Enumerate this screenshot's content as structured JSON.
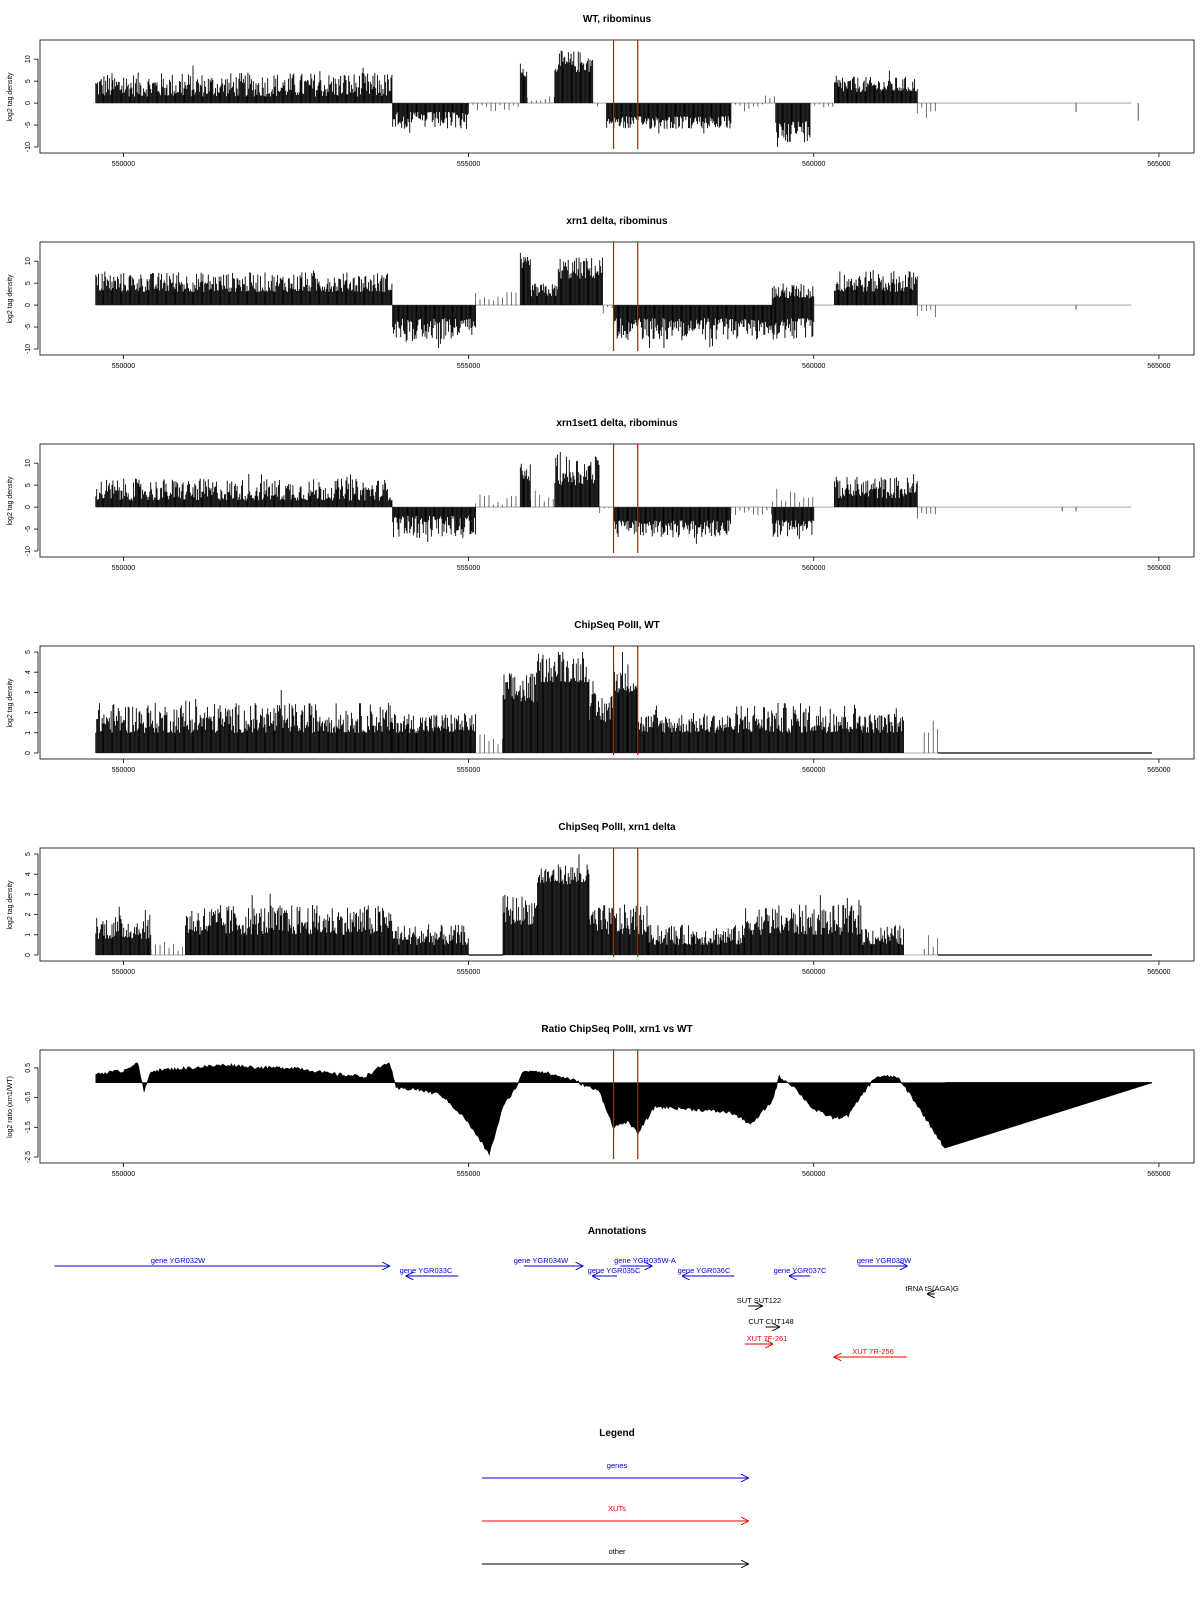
{
  "colors": {
    "gene": "#0000cc",
    "xut": "#ee0000",
    "other": "#000000",
    "marker": "#ee0000",
    "bar": "#000000",
    "baseline": "#999999"
  },
  "x_axis": {
    "min": 549400,
    "max": 564900,
    "ticks": [
      550000,
      555000,
      560000,
      565000
    ]
  },
  "markers": [
    557100,
    557450
  ],
  "chart_data": [
    {
      "type": "bar",
      "title": "WT, ribominus",
      "xlabel": "",
      "ylabel": "log2 tag density",
      "xlim": [
        549400,
        564900
      ],
      "ylim": [
        -10,
        13
      ],
      "yticks": [
        10,
        5,
        0,
        -5,
        -10
      ],
      "profile": [
        {
          "x": [
            549600,
            553900
          ],
          "y": [
            1.5,
            7
          ],
          "stroke": "dense"
        },
        {
          "x": [
            553900,
            555000
          ],
          "y": [
            -2,
            -6
          ],
          "stroke": "dense"
        },
        {
          "x": [
            555000,
            555750
          ],
          "y": [
            0.3,
            -2
          ],
          "stroke": "sparse"
        },
        {
          "x": [
            555750,
            555850
          ],
          "y": [
            6,
            8
          ],
          "stroke": "dense"
        },
        {
          "x": [
            555850,
            556250
          ],
          "y": [
            0.5,
            2
          ],
          "stroke": "sparse"
        },
        {
          "x": [
            556250,
            556800
          ],
          "y": [
            7,
            12
          ],
          "stroke": "dense"
        },
        {
          "x": [
            556800,
            557000
          ],
          "y": [
            0,
            -1
          ],
          "stroke": "sparse"
        },
        {
          "x": [
            557000,
            558800
          ],
          "y": [
            -3,
            -6
          ],
          "stroke": "dense"
        },
        {
          "x": [
            558800,
            559300
          ],
          "y": [
            0.3,
            -2
          ],
          "stroke": "sparse"
        },
        {
          "x": [
            559300,
            559450
          ],
          "y": [
            1,
            3
          ],
          "stroke": "sparse"
        },
        {
          "x": [
            559450,
            559950
          ],
          "y": [
            -4,
            -9
          ],
          "stroke": "dense"
        },
        {
          "x": [
            559950,
            560300
          ],
          "y": [
            0,
            -1
          ],
          "stroke": "sparse"
        },
        {
          "x": [
            560300,
            561500
          ],
          "y": [
            2.5,
            6
          ],
          "stroke": "dense"
        },
        {
          "x": [
            561500,
            561800
          ],
          "y": [
            -1,
            -3
          ],
          "stroke": "sparse"
        },
        {
          "x": [
            563800,
            563830
          ],
          "y": [
            -2,
            -2
          ],
          "stroke": "single"
        },
        {
          "x": [
            564700,
            564730
          ],
          "y": [
            -4,
            -4
          ],
          "stroke": "single"
        }
      ]
    },
    {
      "type": "bar",
      "title": "xrn1 delta, ribominus",
      "xlabel": "",
      "ylabel": "log2 tag density",
      "xlim": [
        549400,
        564900
      ],
      "ylim": [
        -10,
        13
      ],
      "yticks": [
        10,
        5,
        0,
        -5,
        -10
      ],
      "profile": [
        {
          "x": [
            549600,
            553900
          ],
          "y": [
            3,
            7.5
          ],
          "stroke": "dense"
        },
        {
          "x": [
            553900,
            555100
          ],
          "y": [
            -3,
            -8
          ],
          "stroke": "dense"
        },
        {
          "x": [
            555100,
            555750
          ],
          "y": [
            -1,
            3
          ],
          "stroke": "sparse"
        },
        {
          "x": [
            555750,
            555900
          ],
          "y": [
            8,
            11
          ],
          "stroke": "dense"
        },
        {
          "x": [
            555900,
            556300
          ],
          "y": [
            2,
            5
          ],
          "stroke": "dense"
        },
        {
          "x": [
            556300,
            556950
          ],
          "y": [
            6,
            11
          ],
          "stroke": "dense"
        },
        {
          "x": [
            556950,
            557100
          ],
          "y": [
            0,
            -2
          ],
          "stroke": "sparse"
        },
        {
          "x": [
            557100,
            559400
          ],
          "y": [
            -3,
            -8
          ],
          "stroke": "dense"
        },
        {
          "x": [
            559400,
            560000
          ],
          "y": [
            -3,
            -8
          ],
          "stroke": "dense"
        },
        {
          "x": [
            559400,
            560000
          ],
          "y": [
            1.5,
            5
          ],
          "stroke": "dense"
        },
        {
          "x": [
            560300,
            561500
          ],
          "y": [
            3,
            8
          ],
          "stroke": "dense"
        },
        {
          "x": [
            561500,
            561800
          ],
          "y": [
            -1,
            -3
          ],
          "stroke": "sparse"
        },
        {
          "x": [
            563800,
            563830
          ],
          "y": [
            -1,
            -1
          ],
          "stroke": "single"
        }
      ]
    },
    {
      "type": "bar",
      "title": "xrn1set1 delta, ribominus",
      "xlabel": "",
      "ylabel": "log2 tag density",
      "xlim": [
        549400,
        564900
      ],
      "ylim": [
        -10,
        13
      ],
      "yticks": [
        10,
        5,
        0,
        -5,
        -10
      ],
      "profile": [
        {
          "x": [
            549600,
            553900
          ],
          "y": [
            1.5,
            6.5
          ],
          "stroke": "dense"
        },
        {
          "x": [
            553900,
            555100
          ],
          "y": [
            -2,
            -7
          ],
          "stroke": "dense"
        },
        {
          "x": [
            555100,
            555750
          ],
          "y": [
            0.5,
            3
          ],
          "stroke": "sparse"
        },
        {
          "x": [
            555750,
            555900
          ],
          "y": [
            6,
            10
          ],
          "stroke": "dense"
        },
        {
          "x": [
            555900,
            556250
          ],
          "y": [
            1,
            4
          ],
          "stroke": "sparse"
        },
        {
          "x": [
            556250,
            556900
          ],
          "y": [
            5,
            12
          ],
          "stroke": "dense"
        },
        {
          "x": [
            556900,
            557100
          ],
          "y": [
            0,
            -2
          ],
          "stroke": "sparse"
        },
        {
          "x": [
            557100,
            558800
          ],
          "y": [
            -3,
            -7
          ],
          "stroke": "dense"
        },
        {
          "x": [
            558800,
            559400
          ],
          "y": [
            0.5,
            -2
          ],
          "stroke": "sparse"
        },
        {
          "x": [
            559400,
            560000
          ],
          "y": [
            -3,
            -7
          ],
          "stroke": "dense"
        },
        {
          "x": [
            559400,
            560000
          ],
          "y": [
            1,
            5
          ],
          "stroke": "sparse"
        },
        {
          "x": [
            560300,
            561500
          ],
          "y": [
            2,
            7
          ],
          "stroke": "dense"
        },
        {
          "x": [
            561500,
            561800
          ],
          "y": [
            -1,
            -3
          ],
          "stroke": "sparse"
        },
        {
          "x": [
            563600,
            563630
          ],
          "y": [
            -1,
            -1
          ],
          "stroke": "single"
        },
        {
          "x": [
            563800,
            563830
          ],
          "y": [
            -1,
            -1
          ],
          "stroke": "single"
        }
      ]
    },
    {
      "type": "bar",
      "title": "ChipSeq PolII, WT",
      "xlabel": "",
      "ylabel": "log2 tag density",
      "xlim": [
        549400,
        564900
      ],
      "ylim": [
        0,
        5
      ],
      "yticks": [
        5,
        4,
        3,
        2,
        1,
        0
      ],
      "profile": [
        {
          "x": [
            549600,
            553900
          ],
          "y": [
            1,
            2.5
          ],
          "stroke": "dense"
        },
        {
          "x": [
            553900,
            555100
          ],
          "y": [
            1,
            2
          ],
          "stroke": "dense"
        },
        {
          "x": [
            555100,
            555500
          ],
          "y": [
            0.2,
            1
          ],
          "stroke": "sparse"
        },
        {
          "x": [
            555500,
            556000
          ],
          "y": [
            2.5,
            4
          ],
          "stroke": "dense"
        },
        {
          "x": [
            556000,
            556750
          ],
          "y": [
            3.5,
            5
          ],
          "stroke": "dense"
        },
        {
          "x": [
            556750,
            557100
          ],
          "y": [
            1.5,
            3
          ],
          "stroke": "dense"
        },
        {
          "x": [
            557100,
            557450
          ],
          "y": [
            3,
            4.5
          ],
          "stroke": "dense"
        },
        {
          "x": [
            557450,
            559000
          ],
          "y": [
            1,
            2
          ],
          "stroke": "dense"
        },
        {
          "x": [
            559000,
            560700
          ],
          "y": [
            1,
            2.5
          ],
          "stroke": "dense"
        },
        {
          "x": [
            560700,
            561300
          ],
          "y": [
            1,
            2
          ],
          "stroke": "dense"
        },
        {
          "x": [
            561600,
            561800
          ],
          "y": [
            1,
            1.5
          ],
          "stroke": "sparse"
        },
        {
          "x": [
            561800,
            564900
          ],
          "y": [
            0,
            0
          ],
          "stroke": "flat"
        }
      ]
    },
    {
      "type": "bar",
      "title": "ChipSeq PolII, xrn1 delta",
      "xlabel": "",
      "ylabel": "log2 tag density",
      "xlim": [
        549400,
        564900
      ],
      "ylim": [
        0,
        5
      ],
      "yticks": [
        5,
        4,
        3,
        2,
        1,
        0
      ],
      "profile": [
        {
          "x": [
            549600,
            550400
          ],
          "y": [
            0.8,
            2
          ],
          "stroke": "dense"
        },
        {
          "x": [
            550400,
            550900
          ],
          "y": [
            0.2,
            0.8
          ],
          "stroke": "sparse"
        },
        {
          "x": [
            550900,
            553900
          ],
          "y": [
            1,
            2.5
          ],
          "stroke": "dense"
        },
        {
          "x": [
            553900,
            555000
          ],
          "y": [
            0.5,
            1.5
          ],
          "stroke": "dense"
        },
        {
          "x": [
            555000,
            555500
          ],
          "y": [
            0,
            0
          ],
          "stroke": "flat"
        },
        {
          "x": [
            555500,
            556000
          ],
          "y": [
            1.5,
            3
          ],
          "stroke": "dense"
        },
        {
          "x": [
            556000,
            556750
          ],
          "y": [
            3.5,
            4.5
          ],
          "stroke": "dense"
        },
        {
          "x": [
            556750,
            557600
          ],
          "y": [
            1,
            2.5
          ],
          "stroke": "dense"
        },
        {
          "x": [
            557600,
            559000
          ],
          "y": [
            0.5,
            1.5
          ],
          "stroke": "dense"
        },
        {
          "x": [
            559000,
            560700
          ],
          "y": [
            1,
            2.5
          ],
          "stroke": "dense"
        },
        {
          "x": [
            560700,
            561300
          ],
          "y": [
            0.5,
            1.5
          ],
          "stroke": "dense"
        },
        {
          "x": [
            561600,
            561800
          ],
          "y": [
            0.2,
            1
          ],
          "stroke": "sparse"
        },
        {
          "x": [
            561800,
            564900
          ],
          "y": [
            0,
            0
          ],
          "stroke": "flat"
        }
      ]
    },
    {
      "type": "area",
      "title": "Ratio ChipSeq PolII, xrn1 vs WT",
      "xlabel": "",
      "ylabel": "log2 ratio (xrn1/WT)",
      "xlim": [
        549400,
        564900
      ],
      "ylim": [
        -2.5,
        0.9
      ],
      "yticks": [
        0.5,
        -0.5,
        -1.5,
        -2.5
      ],
      "baseline": 0,
      "x": [
        549600,
        550000,
        550200,
        550300,
        550400,
        551000,
        551500,
        552000,
        552500,
        553000,
        553500,
        553850,
        553950,
        554200,
        554600,
        554950,
        555300,
        555500,
        555700,
        555800,
        556000,
        556500,
        556900,
        557100,
        557300,
        557450,
        557700,
        558300,
        558800,
        559100,
        559400,
        559500,
        559700,
        560000,
        560300,
        560500,
        560700,
        560900,
        561200,
        561400,
        561650,
        561900,
        564900
      ],
      "y": [
        0.3,
        0.4,
        0.7,
        -0.3,
        0.4,
        0.5,
        0.6,
        0.5,
        0.5,
        0.3,
        0.2,
        0.7,
        -0.2,
        -0.2,
        -0.4,
        -1.2,
        -2.4,
        -0.8,
        -0.1,
        0.4,
        0.4,
        0.1,
        -0.3,
        -1.5,
        -1.3,
        -1.7,
        -0.8,
        -0.9,
        -1.0,
        -1.4,
        -0.6,
        0.2,
        -0.1,
        -0.9,
        -1.2,
        -1.1,
        -0.4,
        0.2,
        0.2,
        -0.4,
        -1.3,
        -2.2,
        0
      ]
    }
  ],
  "annotations": {
    "title": "Annotations",
    "items": [
      {
        "label": "gene YGR032W",
        "kind": "gene",
        "start": 549000,
        "end": 553850,
        "row": 0
      },
      {
        "label": "gene YGR033C",
        "kind": "gene",
        "start": 554100,
        "end": 554850,
        "row": 1
      },
      {
        "label": "gene YGR034W",
        "kind": "gene",
        "start": 555800,
        "end": 556650,
        "row": 0
      },
      {
        "label": "gene YGR035W-A",
        "kind": "gene",
        "start": 557200,
        "end": 557650,
        "row": 0
      },
      {
        "label": "gene YGR035C",
        "kind": "gene",
        "start": 556800,
        "end": 557150,
        "row": 1
      },
      {
        "label": "gene YGR036C",
        "kind": "gene",
        "start": 558100,
        "end": 558850,
        "row": 1
      },
      {
        "label": "gene YGR037C",
        "kind": "gene",
        "start": 559650,
        "end": 559950,
        "row": 1
      },
      {
        "label": "gene YGR038W",
        "kind": "gene",
        "start": 560650,
        "end": 561350,
        "row": 0
      },
      {
        "label": "tRNA tS(AGA)G",
        "kind": "other",
        "start": 561650,
        "end": 561750,
        "row": 2
      },
      {
        "label": "SUT SUT122",
        "kind": "other",
        "start": 559050,
        "end": 559250,
        "row": 3
      },
      {
        "label": "CUT CUT148",
        "kind": "other",
        "start": 559300,
        "end": 559500,
        "row": 4
      },
      {
        "label": "XUT 7F-261",
        "kind": "xut",
        "start": 559000,
        "end": 559400,
        "row": 5
      },
      {
        "label": "XUT 7R-256",
        "kind": "xut",
        "start": 560300,
        "end": 561350,
        "row": 6
      }
    ]
  },
  "legend": {
    "title": "Legend",
    "items": [
      {
        "label": "genes",
        "kind": "gene"
      },
      {
        "label": "XUTs",
        "kind": "xut"
      },
      {
        "label": "other",
        "kind": "other"
      }
    ]
  }
}
